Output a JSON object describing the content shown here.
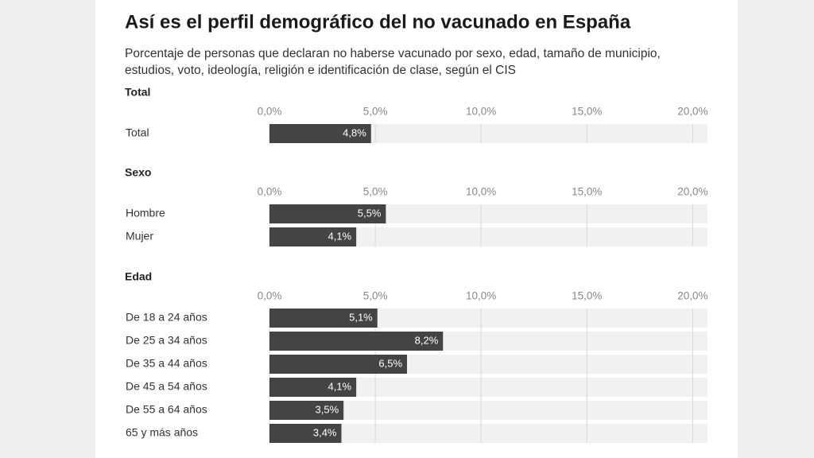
{
  "title": "Así es el perfil demográfico del no vacunado en España",
  "subtitle": [
    "Porcentaje de personas que declaran no haberse vacunado por sexo, edad, tamaño de municipio,",
    "estudios, voto, ideología, religión e identificación de clase, según el CIS"
  ],
  "chart_data": [
    {
      "type": "bar",
      "title": "Total",
      "categories": [
        "Total"
      ],
      "values": [
        4.8
      ],
      "value_labels": [
        "4,8%"
      ],
      "color": "#444444",
      "xlim": [
        0,
        20.7
      ],
      "xticks": [
        {
          "value": 0,
          "label": "0,0%"
        },
        {
          "value": 5,
          "label": "5,0%"
        },
        {
          "value": 10,
          "label": "10,0%"
        },
        {
          "value": 15,
          "label": "15,0%"
        },
        {
          "value": 20,
          "label": "20,0%"
        }
      ],
      "grid": true
    },
    {
      "type": "bar",
      "title": "Sexo",
      "categories": [
        "Hombre",
        "Mujer"
      ],
      "values": [
        5.5,
        4.1
      ],
      "value_labels": [
        "5,5%",
        "4,1%"
      ],
      "color": "#444444",
      "xlim": [
        0,
        20.7
      ],
      "xticks": [
        {
          "value": 0,
          "label": "0,0%"
        },
        {
          "value": 5,
          "label": "5,0%"
        },
        {
          "value": 10,
          "label": "10,0%"
        },
        {
          "value": 15,
          "label": "15,0%"
        },
        {
          "value": 20,
          "label": "20,0%"
        }
      ],
      "grid": true
    },
    {
      "type": "bar",
      "title": "Edad",
      "categories": [
        "De 18 a 24 años",
        "De 25 a 34 años",
        "De 35 a 44 años",
        "De 45 a 54 años",
        "De 55 a 64 años",
        "65 y más años"
      ],
      "values": [
        5.1,
        8.2,
        6.5,
        4.1,
        3.5,
        3.4
      ],
      "value_labels": [
        "5,1%",
        "8,2%",
        "6,5%",
        "4,1%",
        "3,5%",
        "3,4%"
      ],
      "color": "#444444",
      "xlim": [
        0,
        20.7
      ],
      "xticks": [
        {
          "value": 0,
          "label": "0,0%"
        },
        {
          "value": 5,
          "label": "5,0%"
        },
        {
          "value": 10,
          "label": "10,0%"
        },
        {
          "value": 15,
          "label": "15,0%"
        },
        {
          "value": 20,
          "label": "20,0%"
        }
      ],
      "grid": true
    }
  ]
}
